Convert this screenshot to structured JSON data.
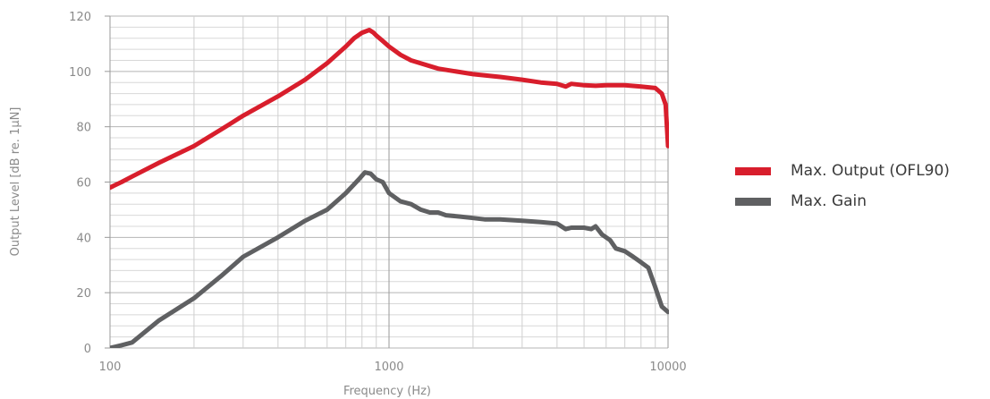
{
  "chart_data": {
    "type": "line",
    "xscale": "log",
    "xlim": [
      100,
      10000
    ],
    "ylim": [
      0,
      120
    ],
    "xlabel": "Frequency (Hz)",
    "ylabel": "Output Level [dB re. 1µN]",
    "x_tick_labels": [
      "100",
      "1000",
      "10000"
    ],
    "y_tick_labels": [
      "0",
      "20",
      "40",
      "60",
      "80",
      "100",
      "120"
    ],
    "grid": true,
    "legend_position": "right",
    "series": [
      {
        "name": "Max. Output (OFL90)",
        "color": "#d81e2c",
        "x": [
          100,
          110,
          120,
          150,
          200,
          250,
          300,
          400,
          500,
          600,
          700,
          750,
          800,
          850,
          880,
          900,
          950,
          1000,
          1100,
          1200,
          1500,
          2000,
          2500,
          3000,
          3500,
          4000,
          4300,
          4500,
          5000,
          5500,
          6000,
          7000,
          8000,
          9000,
          9500,
          9800,
          10000
        ],
        "y": [
          58,
          60,
          62,
          67,
          73,
          79,
          84,
          91,
          97,
          103,
          109,
          112,
          114,
          115,
          114,
          113,
          111,
          109,
          106,
          104,
          101,
          99,
          98,
          97,
          96,
          95.5,
          94.5,
          95.5,
          95,
          94.8,
          95,
          95,
          94.5,
          94,
          92,
          88,
          73
        ]
      },
      {
        "name": "Max. Gain",
        "color": "#5f6062",
        "x": [
          100,
          110,
          120,
          150,
          200,
          250,
          300,
          400,
          500,
          600,
          700,
          780,
          820,
          860,
          900,
          950,
          1000,
          1100,
          1200,
          1300,
          1400,
          1500,
          1600,
          1800,
          2000,
          2200,
          2500,
          3000,
          3500,
          4000,
          4300,
          4500,
          5000,
          5300,
          5500,
          5800,
          6200,
          6500,
          7000,
          7500,
          8000,
          8500,
          9000,
          9500,
          10000
        ],
        "y": [
          0,
          1,
          2,
          10,
          18,
          26,
          33,
          40,
          46,
          50,
          56,
          61,
          63.5,
          63,
          61,
          60,
          56,
          53,
          52,
          50,
          49,
          49,
          48,
          47.5,
          47,
          46.5,
          46.5,
          46,
          45.5,
          45,
          43,
          43.5,
          43.5,
          43,
          44,
          41,
          39,
          36,
          35,
          33,
          31,
          29,
          22,
          15,
          13
        ]
      }
    ]
  }
}
